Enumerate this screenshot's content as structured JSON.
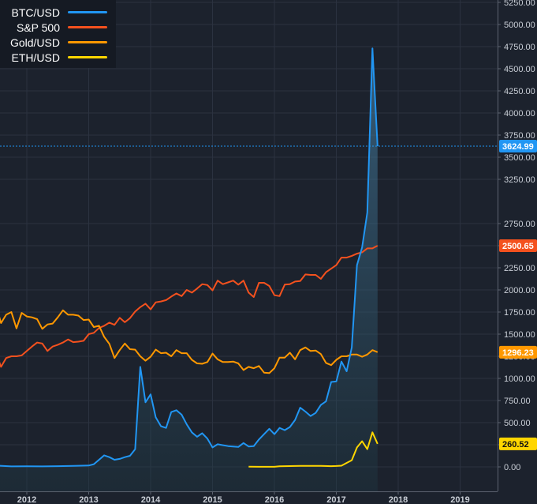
{
  "chart_data": {
    "type": "line",
    "theme": {
      "background": "#1c222d",
      "grid": "#2b3240",
      "text": "#c9ced6"
    },
    "x_ticks": [
      "2012",
      "2013",
      "2014",
      "2015",
      "2016",
      "2017",
      "2018",
      "2019"
    ],
    "y_ticks": [
      "0.00",
      "250.00",
      "500.00",
      "750.00",
      "1000.00",
      "1250.00",
      "1500.00",
      "1750.00",
      "2000.00",
      "2250.00",
      "2500.00",
      "2750.00",
      "3250.00",
      "3500.00",
      "3750.00",
      "4000.00",
      "4250.00",
      "4500.00",
      "4750.00",
      "5000.00",
      "5250.00"
    ],
    "ylim": [
      -250,
      5350
    ],
    "xlim": [
      "2011-07",
      "2019-08"
    ],
    "grid": true,
    "legend_position": "top-left",
    "crosshair_value": 3624.99,
    "series": [
      {
        "name": "BTC/USD",
        "color": "#2196f3",
        "area": true,
        "last_label": "3624.99",
        "points": [
          [
            "2011-07",
            14
          ],
          [
            "2011-10",
            5
          ],
          [
            "2012-01",
            6
          ],
          [
            "2012-04",
            5
          ],
          [
            "2012-07",
            8
          ],
          [
            "2012-10",
            12
          ],
          [
            "2013-01",
            15
          ],
          [
            "2013-02",
            30
          ],
          [
            "2013-04",
            130
          ],
          [
            "2013-05",
            110
          ],
          [
            "2013-06",
            80
          ],
          [
            "2013-07",
            90
          ],
          [
            "2013-08",
            110
          ],
          [
            "2013-09",
            125
          ],
          [
            "2013-10",
            200
          ],
          [
            "2013-11",
            1130
          ],
          [
            "2013-12",
            730
          ],
          [
            "2014-01",
            820
          ],
          [
            "2014-02",
            560
          ],
          [
            "2014-03",
            460
          ],
          [
            "2014-04",
            440
          ],
          [
            "2014-05",
            620
          ],
          [
            "2014-06",
            640
          ],
          [
            "2014-07",
            590
          ],
          [
            "2014-08",
            480
          ],
          [
            "2014-09",
            390
          ],
          [
            "2014-10",
            340
          ],
          [
            "2014-11",
            380
          ],
          [
            "2014-12",
            320
          ],
          [
            "2015-01",
            220
          ],
          [
            "2015-02",
            255
          ],
          [
            "2015-04",
            235
          ],
          [
            "2015-06",
            225
          ],
          [
            "2015-07",
            270
          ],
          [
            "2015-08",
            230
          ],
          [
            "2015-09",
            235
          ],
          [
            "2015-10",
            310
          ],
          [
            "2015-11",
            370
          ],
          [
            "2015-12",
            430
          ],
          [
            "2016-01",
            370
          ],
          [
            "2016-02",
            440
          ],
          [
            "2016-03",
            415
          ],
          [
            "2016-04",
            450
          ],
          [
            "2016-05",
            530
          ],
          [
            "2016-06",
            670
          ],
          [
            "2016-07",
            625
          ],
          [
            "2016-08",
            575
          ],
          [
            "2016-09",
            610
          ],
          [
            "2016-10",
            700
          ],
          [
            "2016-11",
            740
          ],
          [
            "2016-12",
            960
          ],
          [
            "2017-01",
            965
          ],
          [
            "2017-02",
            1190
          ],
          [
            "2017-03",
            1080
          ],
          [
            "2017-04",
            1350
          ],
          [
            "2017-05",
            2280
          ],
          [
            "2017-06",
            2480
          ],
          [
            "2017-07",
            2875
          ],
          [
            "2017-08",
            4730
          ],
          [
            "2017-09",
            3625
          ]
        ]
      },
      {
        "name": "S&P 500",
        "color": "#f4511e",
        "area": false,
        "last_label": "2500.65",
        "points": [
          [
            "2011-07",
            1290
          ],
          [
            "2011-08",
            1130
          ],
          [
            "2011-09",
            1230
          ],
          [
            "2011-10",
            1250
          ],
          [
            "2011-11",
            1250
          ],
          [
            "2011-12",
            1260
          ],
          [
            "2012-01",
            1310
          ],
          [
            "2012-02",
            1360
          ],
          [
            "2012-03",
            1405
          ],
          [
            "2012-04",
            1395
          ],
          [
            "2012-05",
            1310
          ],
          [
            "2012-06",
            1360
          ],
          [
            "2012-07",
            1380
          ],
          [
            "2012-08",
            1405
          ],
          [
            "2012-09",
            1440
          ],
          [
            "2012-10",
            1410
          ],
          [
            "2012-11",
            1415
          ],
          [
            "2012-12",
            1425
          ],
          [
            "2013-01",
            1500
          ],
          [
            "2013-02",
            1515
          ],
          [
            "2013-03",
            1570
          ],
          [
            "2013-04",
            1595
          ],
          [
            "2013-05",
            1630
          ],
          [
            "2013-06",
            1605
          ],
          [
            "2013-07",
            1685
          ],
          [
            "2013-08",
            1635
          ],
          [
            "2013-09",
            1680
          ],
          [
            "2013-10",
            1755
          ],
          [
            "2013-11",
            1805
          ],
          [
            "2013-12",
            1845
          ],
          [
            "2014-01",
            1780
          ],
          [
            "2014-02",
            1860
          ],
          [
            "2014-03",
            1870
          ],
          [
            "2014-04",
            1885
          ],
          [
            "2014-05",
            1925
          ],
          [
            "2014-06",
            1960
          ],
          [
            "2014-07",
            1930
          ],
          [
            "2014-08",
            2000
          ],
          [
            "2014-09",
            1970
          ],
          [
            "2014-10",
            2015
          ],
          [
            "2014-11",
            2065
          ],
          [
            "2014-12",
            2055
          ],
          [
            "2015-01",
            1995
          ],
          [
            "2015-02",
            2105
          ],
          [
            "2015-03",
            2065
          ],
          [
            "2015-04",
            2085
          ],
          [
            "2015-05",
            2105
          ],
          [
            "2015-06",
            2060
          ],
          [
            "2015-07",
            2105
          ],
          [
            "2015-08",
            1970
          ],
          [
            "2015-09",
            1920
          ],
          [
            "2015-10",
            2080
          ],
          [
            "2015-11",
            2080
          ],
          [
            "2015-12",
            2045
          ],
          [
            "2016-01",
            1940
          ],
          [
            "2016-02",
            1930
          ],
          [
            "2016-03",
            2060
          ],
          [
            "2016-04",
            2065
          ],
          [
            "2016-05",
            2095
          ],
          [
            "2016-06",
            2100
          ],
          [
            "2016-07",
            2175
          ],
          [
            "2016-08",
            2170
          ],
          [
            "2016-09",
            2170
          ],
          [
            "2016-10",
            2125
          ],
          [
            "2016-11",
            2200
          ],
          [
            "2016-12",
            2240
          ],
          [
            "2017-01",
            2280
          ],
          [
            "2017-02",
            2365
          ],
          [
            "2017-03",
            2365
          ],
          [
            "2017-04",
            2385
          ],
          [
            "2017-05",
            2410
          ],
          [
            "2017-06",
            2425
          ],
          [
            "2017-07",
            2470
          ],
          [
            "2017-08",
            2470
          ],
          [
            "2017-09",
            2500
          ]
        ]
      },
      {
        "name": "Gold/USD",
        "color": "#ff9800",
        "area": false,
        "last_label": "1296.23",
        "points": [
          [
            "2011-07",
            1830
          ],
          [
            "2011-08",
            1625
          ],
          [
            "2011-09",
            1720
          ],
          [
            "2011-10",
            1750
          ],
          [
            "2011-11",
            1565
          ],
          [
            "2011-12",
            1740
          ],
          [
            "2012-01",
            1700
          ],
          [
            "2012-02",
            1690
          ],
          [
            "2012-03",
            1670
          ],
          [
            "2012-04",
            1560
          ],
          [
            "2012-05",
            1610
          ],
          [
            "2012-06",
            1620
          ],
          [
            "2012-07",
            1690
          ],
          [
            "2012-08",
            1770
          ],
          [
            "2012-09",
            1720
          ],
          [
            "2012-10",
            1720
          ],
          [
            "2012-11",
            1710
          ],
          [
            "2012-12",
            1660
          ],
          [
            "2013-01",
            1665
          ],
          [
            "2013-02",
            1580
          ],
          [
            "2013-03",
            1595
          ],
          [
            "2013-04",
            1470
          ],
          [
            "2013-05",
            1390
          ],
          [
            "2013-06",
            1230
          ],
          [
            "2013-07",
            1320
          ],
          [
            "2013-08",
            1395
          ],
          [
            "2013-09",
            1330
          ],
          [
            "2013-10",
            1325
          ],
          [
            "2013-11",
            1250
          ],
          [
            "2013-12",
            1200
          ],
          [
            "2014-01",
            1245
          ],
          [
            "2014-02",
            1325
          ],
          [
            "2014-03",
            1285
          ],
          [
            "2014-04",
            1290
          ],
          [
            "2014-05",
            1250
          ],
          [
            "2014-06",
            1320
          ],
          [
            "2014-07",
            1285
          ],
          [
            "2014-08",
            1285
          ],
          [
            "2014-09",
            1210
          ],
          [
            "2014-10",
            1170
          ],
          [
            "2014-11",
            1165
          ],
          [
            "2014-12",
            1185
          ],
          [
            "2015-01",
            1280
          ],
          [
            "2015-02",
            1215
          ],
          [
            "2015-03",
            1185
          ],
          [
            "2015-04",
            1185
          ],
          [
            "2015-05",
            1190
          ],
          [
            "2015-06",
            1170
          ],
          [
            "2015-07",
            1095
          ],
          [
            "2015-08",
            1130
          ],
          [
            "2015-09",
            1115
          ],
          [
            "2015-10",
            1140
          ],
          [
            "2015-11",
            1065
          ],
          [
            "2015-12",
            1060
          ],
          [
            "2016-01",
            1115
          ],
          [
            "2016-02",
            1235
          ],
          [
            "2016-03",
            1235
          ],
          [
            "2016-04",
            1290
          ],
          [
            "2016-05",
            1215
          ],
          [
            "2016-06",
            1320
          ],
          [
            "2016-07",
            1350
          ],
          [
            "2016-08",
            1310
          ],
          [
            "2016-09",
            1315
          ],
          [
            "2016-10",
            1275
          ],
          [
            "2016-11",
            1175
          ],
          [
            "2016-12",
            1150
          ],
          [
            "2017-01",
            1210
          ],
          [
            "2017-02",
            1250
          ],
          [
            "2017-03",
            1250
          ],
          [
            "2017-04",
            1270
          ],
          [
            "2017-05",
            1270
          ],
          [
            "2017-06",
            1245
          ],
          [
            "2017-07",
            1270
          ],
          [
            "2017-08",
            1320
          ],
          [
            "2017-09",
            1296
          ]
        ]
      },
      {
        "name": "ETH/USD",
        "color": "#ffd600",
        "area": false,
        "last_label": "260.52",
        "points": [
          [
            "2015-08",
            2
          ],
          [
            "2015-10",
            1
          ],
          [
            "2015-12",
            1
          ],
          [
            "2016-01",
            1
          ],
          [
            "2016-02",
            6
          ],
          [
            "2016-03",
            8
          ],
          [
            "2016-04",
            9
          ],
          [
            "2016-06",
            12
          ],
          [
            "2016-08",
            11
          ],
          [
            "2016-10",
            12
          ],
          [
            "2016-12",
            8
          ],
          [
            "2017-01",
            10
          ],
          [
            "2017-02",
            13
          ],
          [
            "2017-03",
            45
          ],
          [
            "2017-04",
            75
          ],
          [
            "2017-05",
            220
          ],
          [
            "2017-06",
            290
          ],
          [
            "2017-07",
            200
          ],
          [
            "2017-08",
            390
          ],
          [
            "2017-09",
            260
          ]
        ]
      }
    ]
  }
}
